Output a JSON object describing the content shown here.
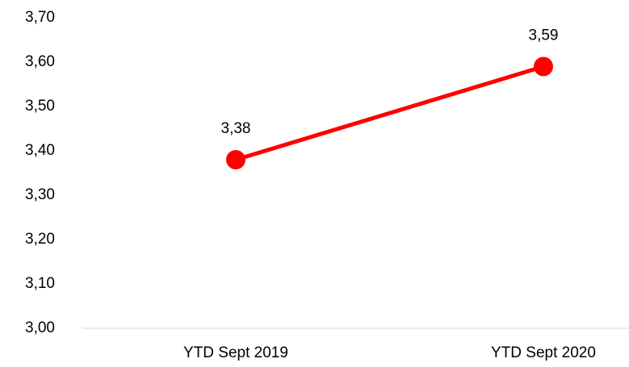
{
  "chart_data": {
    "type": "line",
    "categories": [
      "YTD Sept 2019",
      "YTD Sept 2020"
    ],
    "values": [
      3.38,
      3.59
    ],
    "value_labels": [
      "3,38",
      "3,59"
    ],
    "color": "#ff0000",
    "ylim": [
      3.0,
      3.7
    ],
    "yticks": [
      {
        "value": 3.0,
        "label": "3,00"
      },
      {
        "value": 3.1,
        "label": "3,10"
      },
      {
        "value": 3.2,
        "label": "3,20"
      },
      {
        "value": 3.3,
        "label": "3,30"
      },
      {
        "value": 3.4,
        "label": "3,40"
      },
      {
        "value": 3.5,
        "label": "3,50"
      },
      {
        "value": 3.6,
        "label": "3,60"
      },
      {
        "value": 3.7,
        "label": "3,70"
      }
    ],
    "grid": false
  }
}
